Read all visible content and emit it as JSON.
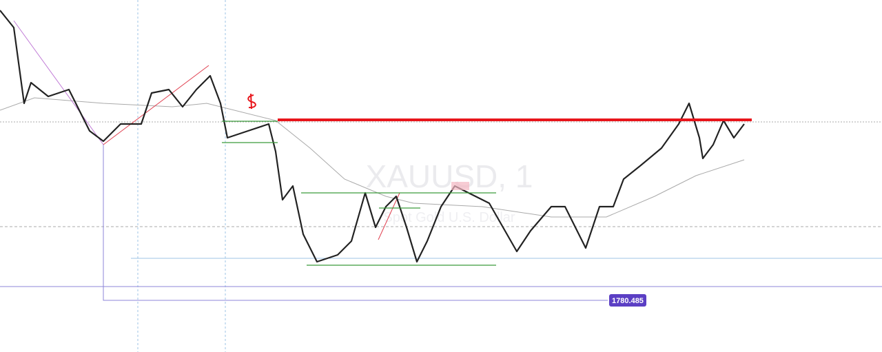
{
  "watermark": {
    "symbol": "XAUUSD, 1",
    "description": "Spot Gold U.S. Dollar"
  },
  "price_label": "1780.485"
}
